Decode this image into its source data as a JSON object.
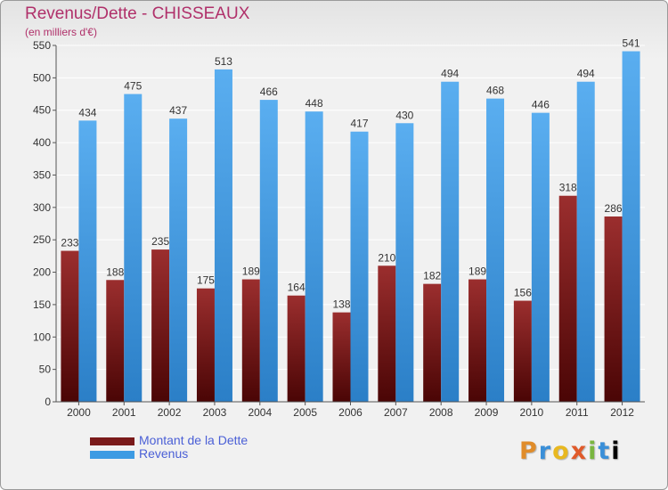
{
  "chart_data": {
    "type": "bar",
    "title": "Revenus/Dette - CHISSEAUX",
    "subtitle": "(en milliers d'€)",
    "categories": [
      "2000",
      "2001",
      "2002",
      "2003",
      "2004",
      "2005",
      "2006",
      "2007",
      "2008",
      "2009",
      "2010",
      "2011",
      "2012"
    ],
    "series": [
      {
        "name": "Montant de la Dette",
        "color": "#7a1a1a",
        "values": [
          233,
          188,
          235,
          175,
          189,
          164,
          138,
          210,
          182,
          189,
          156,
          318,
          286
        ]
      },
      {
        "name": "Revenus",
        "color": "#3d9be3",
        "values": [
          434,
          475,
          437,
          513,
          466,
          448,
          417,
          430,
          494,
          468,
          446,
          494,
          541
        ]
      }
    ],
    "ylim": [
      0,
      550
    ],
    "yticks": [
      0,
      50,
      100,
      150,
      200,
      250,
      300,
      350,
      400,
      450,
      500,
      550
    ],
    "grid": true,
    "legend_position": "bottom-left"
  },
  "logo": {
    "letters": [
      "P",
      "r",
      "o",
      "x",
      "i",
      "t",
      "i"
    ]
  }
}
